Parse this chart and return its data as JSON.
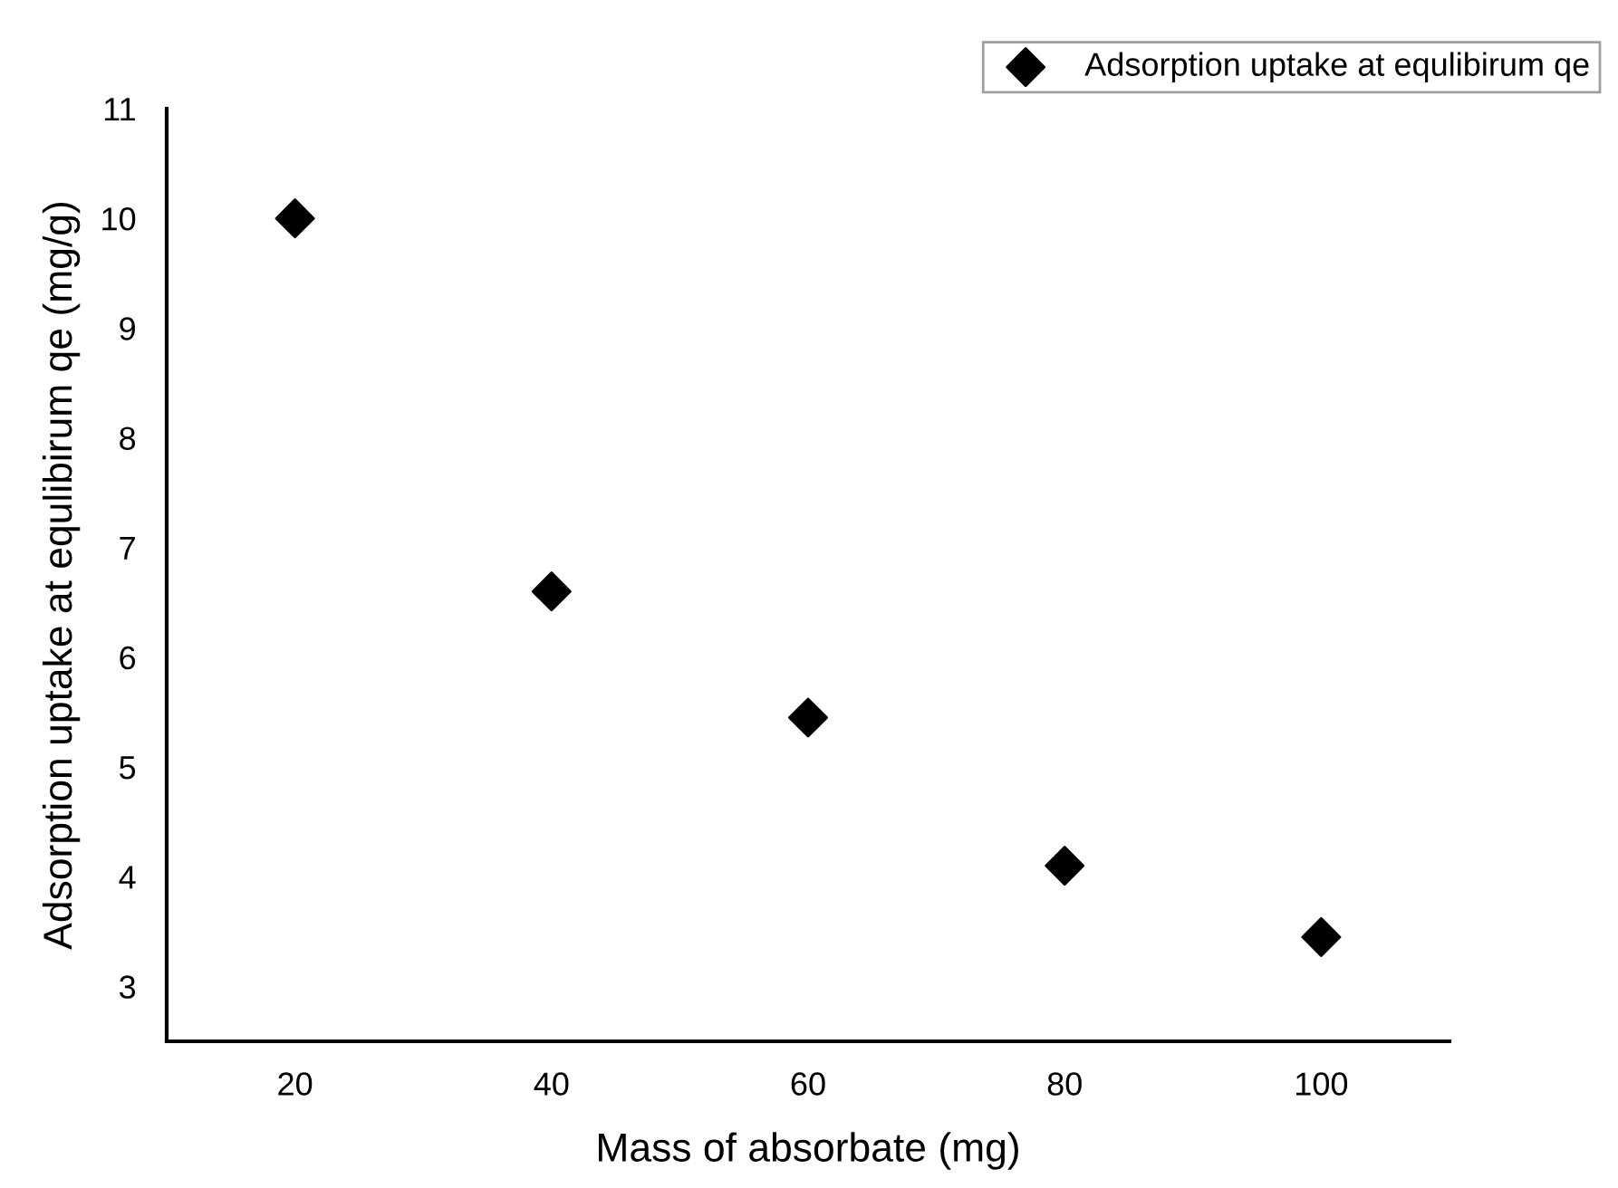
{
  "chart_data": {
    "type": "scatter",
    "xlabel": "Mass of absorbate (mg)",
    "ylabel": "Adsorption uptake at equlibirum qe (mg/g)",
    "x": [
      20,
      40,
      60,
      80,
      100
    ],
    "series": [
      {
        "name": "Adsorption uptake at equlibirum qe",
        "color": "#000000",
        "values": [
          10.0,
          6.6,
          5.45,
          4.1,
          3.45
        ]
      }
    ],
    "xlim": [
      10,
      110
    ],
    "xticks": [
      20,
      40,
      60,
      80,
      100
    ],
    "ylim": [
      2.5,
      11
    ],
    "yticks": [
      3,
      4,
      5,
      6,
      7,
      8,
      9,
      10,
      11
    ],
    "marker": "diamond",
    "legend": "top right",
    "grid": false
  }
}
